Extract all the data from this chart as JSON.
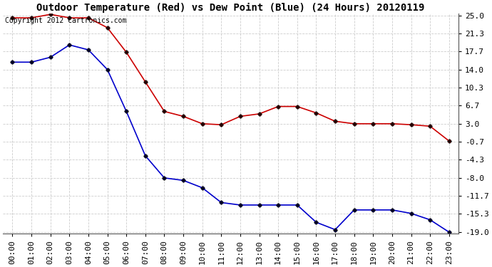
{
  "title": "Outdoor Temperature (Red) vs Dew Point (Blue) (24 Hours) 20120119",
  "copyright_text": "Copyright 2012 Cartronics.com",
  "x_labels": [
    "00:00",
    "01:00",
    "02:00",
    "03:00",
    "04:00",
    "05:00",
    "06:00",
    "07:00",
    "08:00",
    "09:00",
    "10:00",
    "11:00",
    "12:00",
    "13:00",
    "14:00",
    "15:00",
    "16:00",
    "17:00",
    "18:00",
    "19:00",
    "20:00",
    "21:00",
    "22:00",
    "23:00"
  ],
  "red_temp": [
    24.5,
    24.5,
    25.2,
    24.5,
    24.5,
    22.5,
    17.5,
    11.5,
    5.5,
    4.5,
    3.0,
    2.8,
    4.5,
    5.0,
    6.5,
    6.5,
    5.2,
    3.5,
    3.0,
    3.0,
    3.0,
    2.8,
    2.5,
    -0.5
  ],
  "blue_dew": [
    15.5,
    15.5,
    16.5,
    19.0,
    18.0,
    14.0,
    5.5,
    -3.5,
    -8.0,
    -8.5,
    -10.0,
    -13.0,
    -13.5,
    -13.5,
    -13.5,
    -13.5,
    -17.0,
    -18.5,
    -14.5,
    -14.5,
    -14.5,
    -15.2,
    -16.5,
    -19.0
  ],
  "ylim_min": -19.0,
  "ylim_max": 25.0,
  "yticks": [
    25.0,
    21.3,
    17.7,
    14.0,
    10.3,
    6.7,
    3.0,
    -0.7,
    -4.3,
    -8.0,
    -11.7,
    -15.3,
    -19.0
  ],
  "bg_color": "#ffffff",
  "plot_bg_color": "#ffffff",
  "grid_color": "#cccccc",
  "red_color": "#cc0000",
  "blue_color": "#0000cc",
  "marker_color": "#000000",
  "title_fontsize": 10,
  "tick_fontsize": 8,
  "copyright_fontsize": 7
}
